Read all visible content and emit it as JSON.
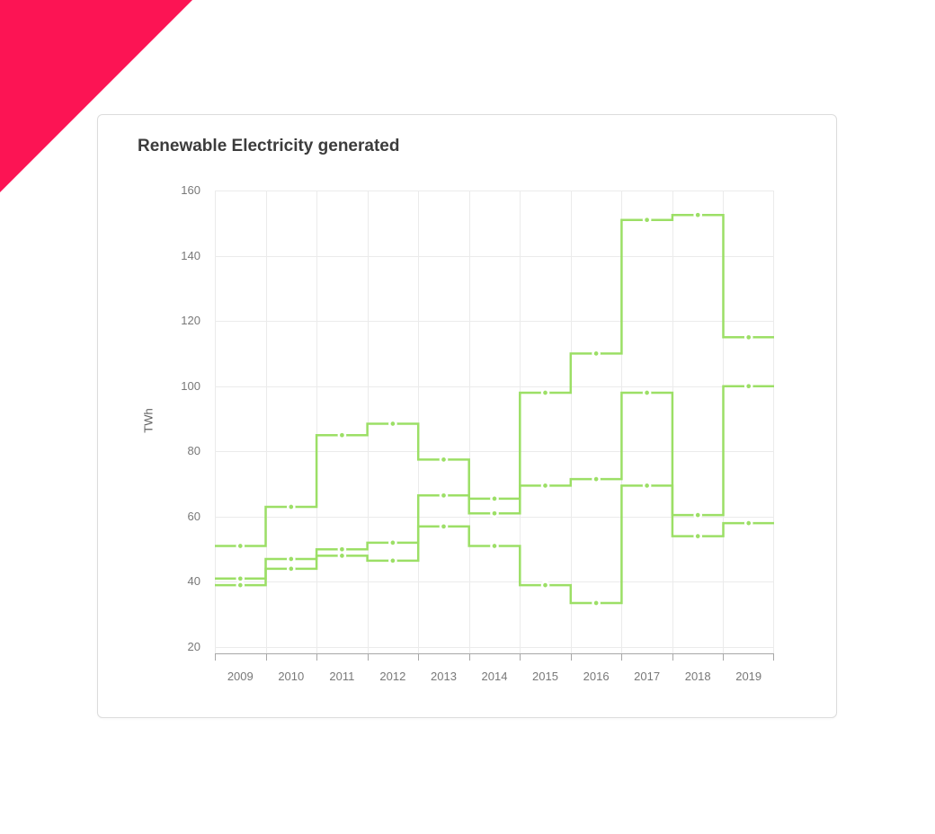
{
  "accent": {
    "corner_color": "#FC1454"
  },
  "card": {
    "border_color": "#dcdcdc",
    "background": "#ffffff"
  },
  "chart_data": {
    "type": "line",
    "line_shape": "step-mid-hv",
    "title": "Renewable Electricity generated",
    "xlabel": "",
    "ylabel": "TWh",
    "x_labels": [
      "2009",
      "2010",
      "2011",
      "2012",
      "2013",
      "2014",
      "2015",
      "2016",
      "2017",
      "2018",
      "2019"
    ],
    "y_ticks": [
      20,
      40,
      60,
      80,
      100,
      120,
      140,
      160
    ],
    "ylim": [
      17.8,
      160
    ],
    "grid": true,
    "legend": false,
    "line_color": "#9CDF66",
    "marker_style": "circle-with-white-halo",
    "grid_color": "#EBEBEB",
    "axis_color": "#A8A8A8",
    "tick_label_color": "#787878",
    "series": [
      {
        "name": "series-1",
        "values": [
          51,
          63,
          85,
          88.5,
          77.5,
          65.5,
          98,
          110,
          151,
          152.5,
          115
        ]
      },
      {
        "name": "series-2",
        "values": [
          41,
          44,
          50,
          52,
          66.5,
          61,
          69.5,
          71.5,
          98,
          60.5,
          100
        ]
      },
      {
        "name": "series-3",
        "values": [
          39,
          47,
          48,
          46.5,
          57,
          51,
          39,
          33.5,
          69.5,
          54,
          58
        ]
      }
    ]
  }
}
